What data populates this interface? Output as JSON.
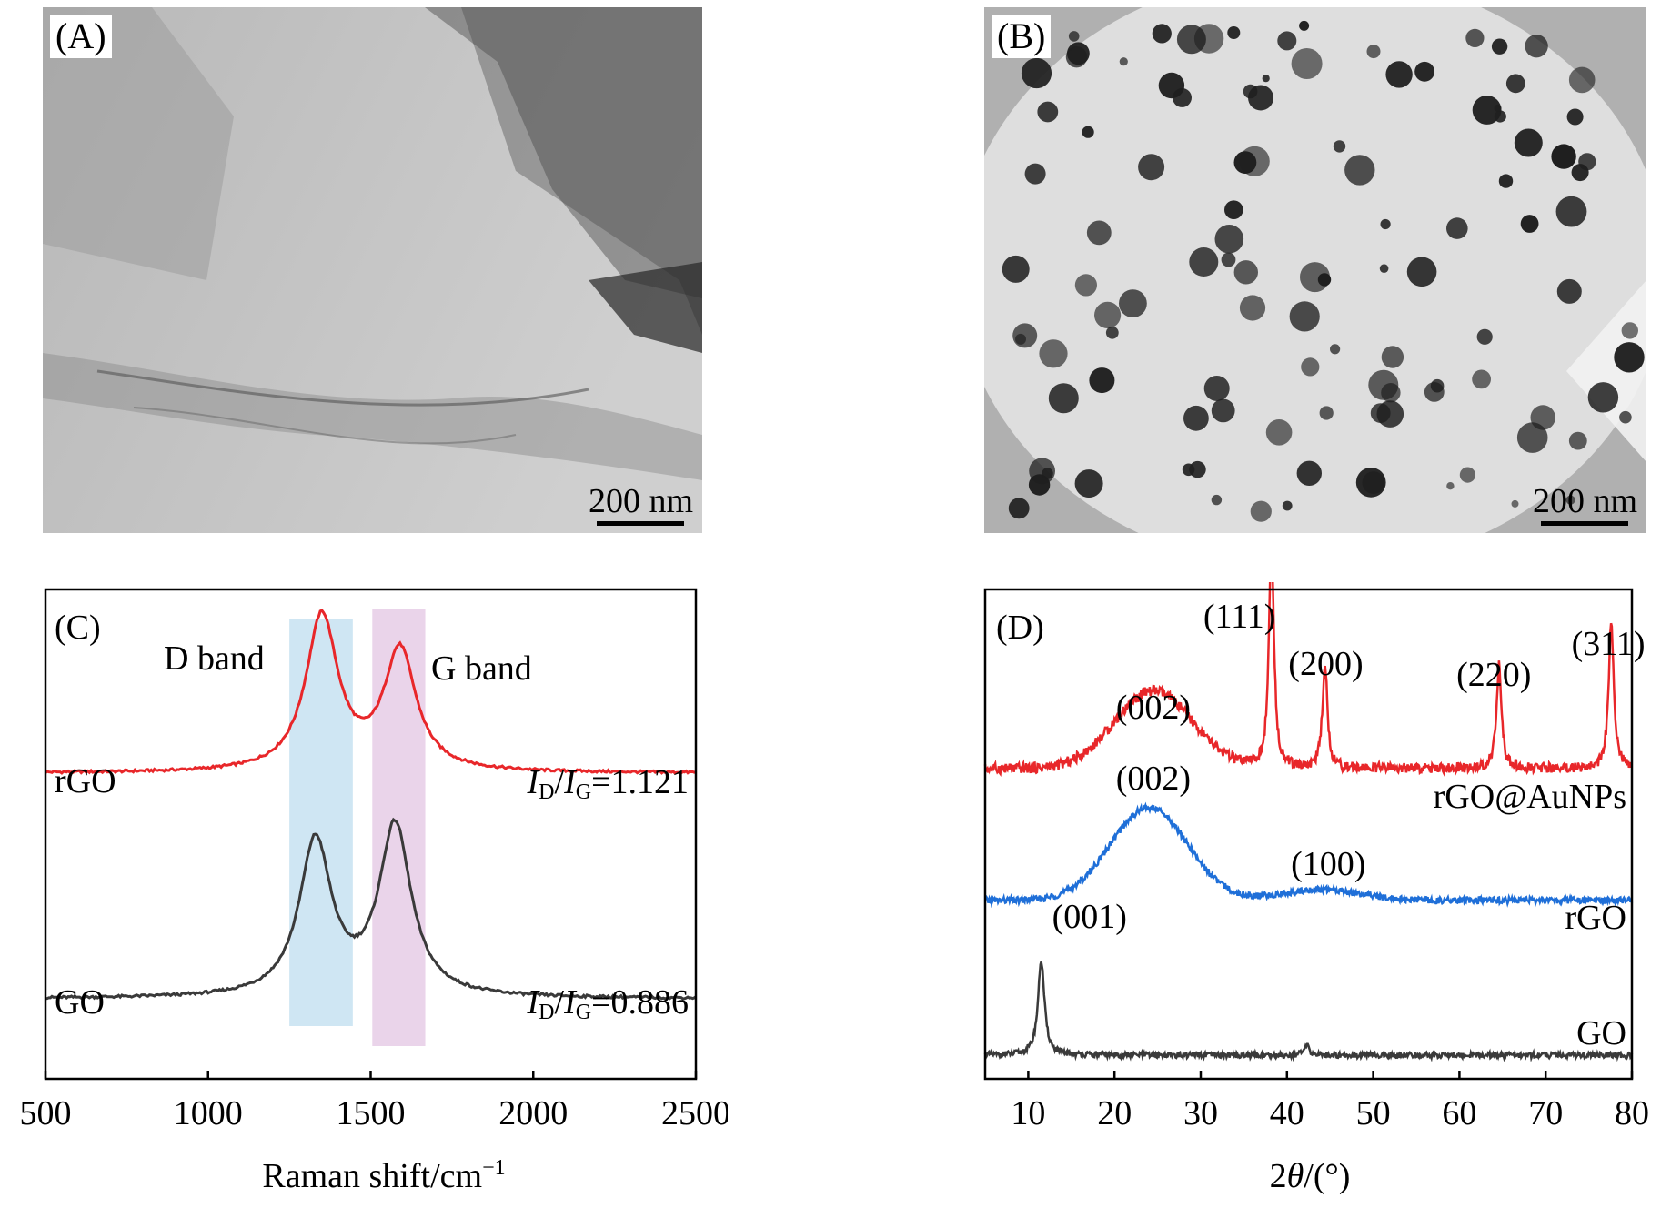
{
  "figure": {
    "A": {
      "label": "(A)",
      "scale_label": "200 nm"
    },
    "B": {
      "label": "(B)",
      "scale_label": "200 nm"
    }
  },
  "chart_data": [
    {
      "type": "line",
      "panel": "(C)",
      "xlabel_main": "Raman shift/cm",
      "xlabel_sup": "−1",
      "xlim": [
        500,
        2500
      ],
      "xticks": [
        "500",
        "1000",
        "1500",
        "2000",
        "2500"
      ],
      "yticks": false,
      "band_labels": [
        "D band",
        "G band"
      ],
      "bands": [
        {
          "name": "D band",
          "range": [
            1250,
            1445
          ],
          "color": "#cfe6f3"
        },
        {
          "name": "G band",
          "range": [
            1505,
            1668
          ],
          "color": "#ead4ea"
        }
      ],
      "series": [
        {
          "name": "rGO",
          "color": "#e8272a",
          "ratio_I": "I",
          "ratio_sub1": "D",
          "ratio_slash": "/",
          "ratio_sub2": "G",
          "ratio_value": "=1.121",
          "baseline": 0.2,
          "peaks": [
            {
              "x": 1350,
              "height": 3.1
            },
            {
              "x": 1590,
              "height": 2.4
            }
          ]
        },
        {
          "name": "GO",
          "color": "#3a3a3a",
          "ratio_I": "I",
          "ratio_sub1": "D",
          "ratio_slash": "/",
          "ratio_sub2": "G",
          "ratio_value": "=0.886",
          "baseline": 0.0,
          "peaks": [
            {
              "x": 1330,
              "height": 3.1
            },
            {
              "x": 1575,
              "height": 3.4
            }
          ]
        }
      ]
    },
    {
      "type": "line",
      "panel": "(D)",
      "xlabel_prefix": "2",
      "xlabel_theta": "θ",
      "xlabel_suffix": "/(°)",
      "xlim": [
        5,
        80
      ],
      "xticks": [
        "10",
        "20",
        "30",
        "40",
        "50",
        "60",
        "70",
        "80"
      ],
      "yticks": false,
      "series": [
        {
          "name": "rGO@AuNPs",
          "color": "#e8272a",
          "peaks": [
            {
              "label": "(002)",
              "x": 24.5,
              "height": 0.9
            },
            {
              "label": "(111)",
              "x": 38.2,
              "height": 2.6
            },
            {
              "label": "(200)",
              "x": 44.4,
              "height": 1.2
            },
            {
              "label": "(220)",
              "x": 64.6,
              "height": 1.2
            },
            {
              "label": "(311)",
              "x": 77.6,
              "height": 1.7
            }
          ]
        },
        {
          "name": "rGO",
          "color": "#1f6fd8",
          "peaks": [
            {
              "label": "(002)",
              "x": 24.0,
              "height": 1.7
            },
            {
              "label": "(100)",
              "x": 44.0,
              "height": 0.2
            }
          ]
        },
        {
          "name": "GO",
          "color": "#3a3a3a",
          "peaks": [
            {
              "label": "(001)",
              "x": 11.5,
              "height": 2.0
            },
            {
              "label": "",
              "x": 42.3,
              "height": 0.2
            }
          ]
        }
      ]
    }
  ]
}
